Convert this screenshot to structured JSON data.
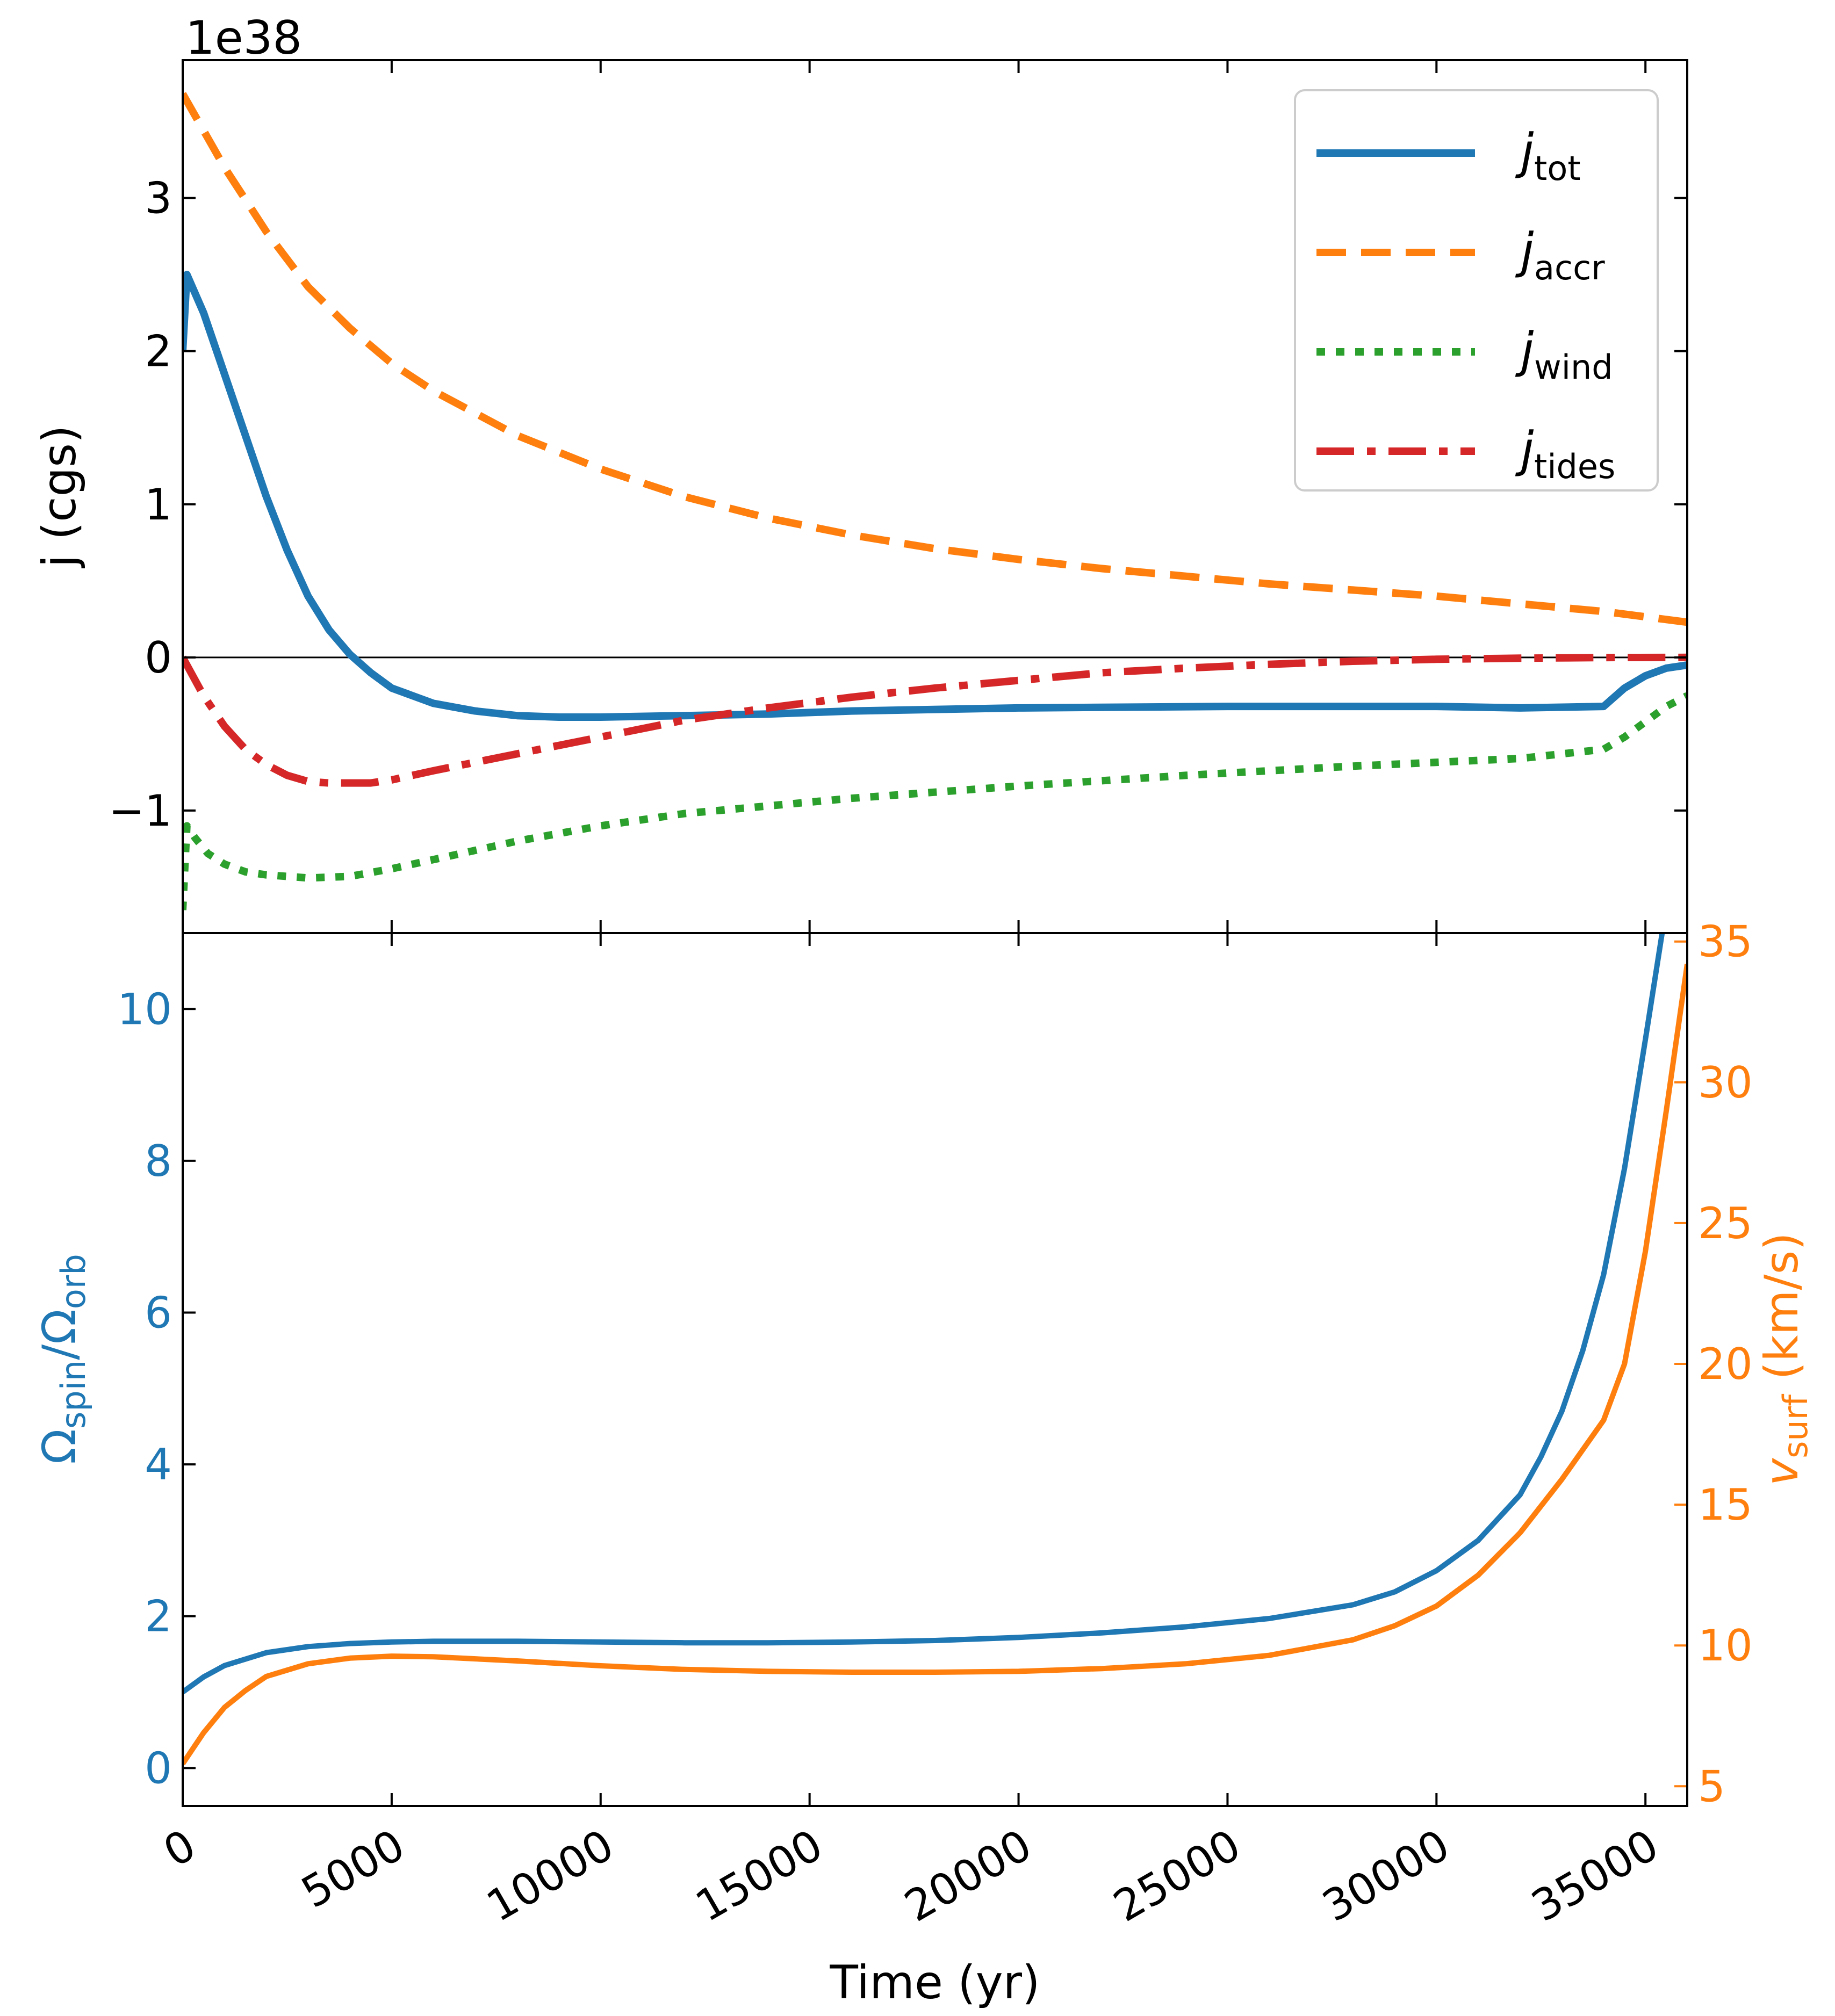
{
  "chart_data": [
    {
      "type": "line",
      "panel": "top",
      "ylabel": "j̇ (cgs)",
      "offset_text": "1e38",
      "xlim": [
        0,
        36000
      ],
      "ylim": [
        -1.8,
        3.9
      ],
      "y_ticks": [
        -1,
        0,
        1,
        2,
        3
      ],
      "y_tick_labels": [
        "−1",
        "0",
        "1",
        "2",
        "3"
      ],
      "legend_position": "top-right",
      "zero_line": true,
      "series": [
        {
          "name": "j̇tot",
          "label_main": "j̇",
          "label_sub": "tot",
          "color": "#1f77b4",
          "style": "solid",
          "x": [
            0,
            100,
            500,
            1000,
            1500,
            2000,
            2500,
            3000,
            3500,
            4000,
            4500,
            5000,
            6000,
            7000,
            8000,
            9000,
            10000,
            12000,
            14000,
            16000,
            20000,
            25000,
            30000,
            32000,
            34000,
            34500,
            35000,
            35500,
            36000
          ],
          "y": [
            2.0,
            2.5,
            2.25,
            1.85,
            1.45,
            1.05,
            0.7,
            0.4,
            0.18,
            0.02,
            -0.1,
            -0.2,
            -0.3,
            -0.35,
            -0.38,
            -0.39,
            -0.39,
            -0.38,
            -0.37,
            -0.35,
            -0.33,
            -0.32,
            -0.32,
            -0.33,
            -0.32,
            -0.2,
            -0.12,
            -0.07,
            -0.05
          ]
        },
        {
          "name": "j̇accr",
          "label_main": "j̇",
          "label_sub": "accr",
          "color": "#ff7f0e",
          "style": "dashed",
          "x": [
            0,
            1000,
            2000,
            3000,
            4000,
            5000,
            6000,
            8000,
            10000,
            12000,
            14000,
            16000,
            18000,
            20000,
            22000,
            24000,
            26000,
            28000,
            30000,
            32000,
            34000,
            36000
          ],
          "y": [
            3.68,
            3.2,
            2.78,
            2.42,
            2.15,
            1.92,
            1.74,
            1.45,
            1.23,
            1.05,
            0.91,
            0.8,
            0.71,
            0.64,
            0.58,
            0.53,
            0.48,
            0.44,
            0.4,
            0.35,
            0.3,
            0.23
          ]
        },
        {
          "name": "j̇wind",
          "label_main": "j̇",
          "label_sub": "wind",
          "color": "#2ca02c",
          "style": "dotted",
          "x": [
            0,
            100,
            300,
            600,
            1000,
            1500,
            2000,
            2500,
            3000,
            4000,
            5000,
            6000,
            8000,
            10000,
            12000,
            14000,
            16000,
            18000,
            20000,
            24000,
            28000,
            32000,
            34000,
            34500,
            35000,
            35500,
            36000
          ],
          "y": [
            -1.65,
            -1.1,
            -1.18,
            -1.28,
            -1.35,
            -1.4,
            -1.42,
            -1.43,
            -1.44,
            -1.43,
            -1.38,
            -1.32,
            -1.2,
            -1.1,
            -1.02,
            -0.97,
            -0.92,
            -0.88,
            -0.84,
            -0.77,
            -0.71,
            -0.66,
            -0.6,
            -0.52,
            -0.42,
            -0.32,
            -0.25
          ]
        },
        {
          "name": "j̇tides",
          "label_main": "j̇",
          "label_sub": "tides",
          "color": "#d62728",
          "style": "dashdot",
          "x": [
            0,
            500,
            1000,
            1500,
            2000,
            2500,
            3000,
            3500,
            4000,
            4500,
            5000,
            6000,
            8000,
            10000,
            12000,
            14000,
            16000,
            18000,
            20000,
            22000,
            24000,
            26000,
            28000,
            30000,
            32000,
            34000,
            36000
          ],
          "y": [
            0.0,
            -0.25,
            -0.45,
            -0.6,
            -0.7,
            -0.77,
            -0.81,
            -0.82,
            -0.82,
            -0.82,
            -0.8,
            -0.74,
            -0.63,
            -0.52,
            -0.41,
            -0.33,
            -0.26,
            -0.2,
            -0.15,
            -0.1,
            -0.07,
            -0.045,
            -0.025,
            -0.012,
            -0.005,
            -0.001,
            0.0
          ]
        }
      ]
    },
    {
      "type": "line",
      "panel": "bottom",
      "xlabel": "Time (yr)",
      "xlim": [
        0,
        36000
      ],
      "x_ticks": [
        0,
        5000,
        10000,
        15000,
        20000,
        25000,
        30000,
        35000
      ],
      "x_tick_labels": [
        "0",
        "5000",
        "10000",
        "15000",
        "20000",
        "25000",
        "30000",
        "35000"
      ],
      "ylabel_left": {
        "main": "Ω",
        "sub1": "spin",
        "mid": "/Ω",
        "sub2": "orb"
      },
      "ylabel_right": {
        "main": "v",
        "sub": "surf",
        "rest": " (km/s)"
      },
      "ylim_left": [
        -0.5,
        11.0
      ],
      "ylim_right": [
        4.3,
        35.3
      ],
      "y_ticks_left": [
        0,
        2,
        4,
        6,
        8,
        10
      ],
      "y_tick_labels_left": [
        "0",
        "2",
        "4",
        "6",
        "8",
        "10"
      ],
      "y_ticks_right": [
        5,
        10,
        15,
        20,
        25,
        30,
        35
      ],
      "y_tick_labels_right": [
        "5",
        "10",
        "15",
        "20",
        "25",
        "30",
        "35"
      ],
      "left_axis_color": "#1f77b4",
      "right_axis_color": "#ff7f0e",
      "series": [
        {
          "axis": "left",
          "color": "#1f77b4",
          "x": [
            0,
            500,
            1000,
            2000,
            3000,
            4000,
            5000,
            6000,
            8000,
            10000,
            12000,
            14000,
            16000,
            18000,
            20000,
            22000,
            24000,
            26000,
            28000,
            29000,
            30000,
            31000,
            32000,
            32500,
            33000,
            33500,
            34000,
            34500,
            35000,
            35400
          ],
          "y": [
            1.0,
            1.2,
            1.35,
            1.52,
            1.6,
            1.64,
            1.66,
            1.67,
            1.67,
            1.66,
            1.65,
            1.65,
            1.66,
            1.68,
            1.72,
            1.78,
            1.86,
            1.97,
            2.15,
            2.32,
            2.6,
            3.0,
            3.6,
            4.1,
            4.7,
            5.5,
            6.5,
            7.9,
            9.6,
            11.0
          ]
        },
        {
          "axis": "right",
          "color": "#ff7f0e",
          "x": [
            0,
            500,
            1000,
            1500,
            2000,
            3000,
            4000,
            5000,
            6000,
            8000,
            10000,
            12000,
            14000,
            16000,
            18000,
            20000,
            22000,
            24000,
            26000,
            28000,
            29000,
            30000,
            31000,
            32000,
            33000,
            34000,
            34500,
            35000,
            35500,
            36000
          ],
          "y": [
            5.8,
            6.9,
            7.8,
            8.4,
            8.9,
            9.35,
            9.55,
            9.62,
            9.6,
            9.45,
            9.28,
            9.15,
            9.08,
            9.05,
            9.05,
            9.08,
            9.18,
            9.35,
            9.65,
            10.2,
            10.7,
            11.4,
            12.5,
            14.0,
            15.9,
            18.0,
            20.0,
            24.0,
            29.0,
            34.2
          ]
        }
      ]
    }
  ]
}
